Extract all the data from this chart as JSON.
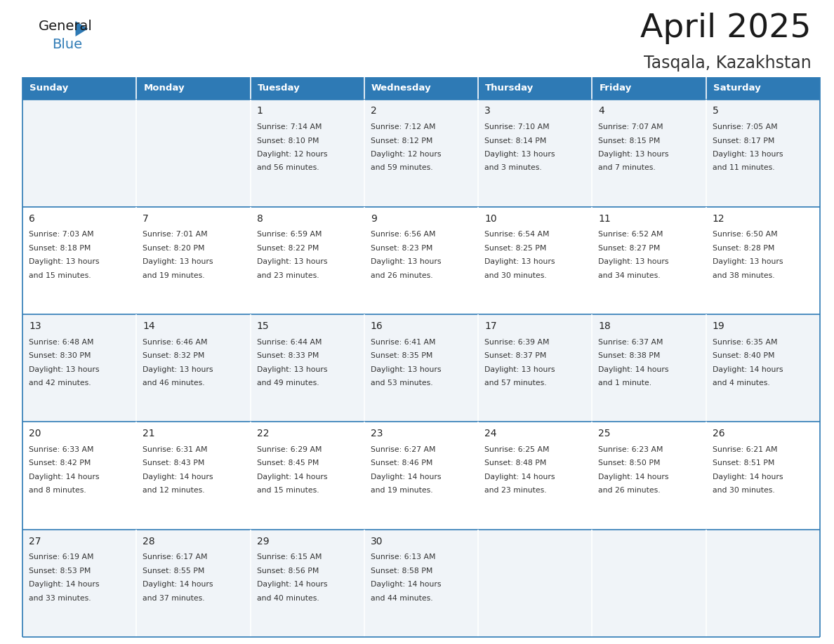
{
  "title": "April 2025",
  "subtitle": "Tasqala, Kazakhstan",
  "days_of_week": [
    "Sunday",
    "Monday",
    "Tuesday",
    "Wednesday",
    "Thursday",
    "Friday",
    "Saturday"
  ],
  "header_bg": "#2e7ab5",
  "header_text": "#ffffff",
  "row_bg_odd": "#f0f4f8",
  "row_bg_even": "#ffffff",
  "cell_border_color": "#2e7ab5",
  "day_num_color": "#222222",
  "text_color": "#333333",
  "title_color": "#1a1a1a",
  "subtitle_color": "#333333",
  "logo_color_general": "#1a1a1a",
  "logo_color_blue": "#2e7ab5",
  "logo_triangle_color": "#2e7ab5",
  "weeks": [
    [
      {
        "day": null,
        "sunrise": null,
        "sunset": null,
        "daylight": null
      },
      {
        "day": null,
        "sunrise": null,
        "sunset": null,
        "daylight": null
      },
      {
        "day": 1,
        "sunrise": "7:14 AM",
        "sunset": "8:10 PM",
        "daylight": "12 hours\nand 56 minutes."
      },
      {
        "day": 2,
        "sunrise": "7:12 AM",
        "sunset": "8:12 PM",
        "daylight": "12 hours\nand 59 minutes."
      },
      {
        "day": 3,
        "sunrise": "7:10 AM",
        "sunset": "8:14 PM",
        "daylight": "13 hours\nand 3 minutes."
      },
      {
        "day": 4,
        "sunrise": "7:07 AM",
        "sunset": "8:15 PM",
        "daylight": "13 hours\nand 7 minutes."
      },
      {
        "day": 5,
        "sunrise": "7:05 AM",
        "sunset": "8:17 PM",
        "daylight": "13 hours\nand 11 minutes."
      }
    ],
    [
      {
        "day": 6,
        "sunrise": "7:03 AM",
        "sunset": "8:18 PM",
        "daylight": "13 hours\nand 15 minutes."
      },
      {
        "day": 7,
        "sunrise": "7:01 AM",
        "sunset": "8:20 PM",
        "daylight": "13 hours\nand 19 minutes."
      },
      {
        "day": 8,
        "sunrise": "6:59 AM",
        "sunset": "8:22 PM",
        "daylight": "13 hours\nand 23 minutes."
      },
      {
        "day": 9,
        "sunrise": "6:56 AM",
        "sunset": "8:23 PM",
        "daylight": "13 hours\nand 26 minutes."
      },
      {
        "day": 10,
        "sunrise": "6:54 AM",
        "sunset": "8:25 PM",
        "daylight": "13 hours\nand 30 minutes."
      },
      {
        "day": 11,
        "sunrise": "6:52 AM",
        "sunset": "8:27 PM",
        "daylight": "13 hours\nand 34 minutes."
      },
      {
        "day": 12,
        "sunrise": "6:50 AM",
        "sunset": "8:28 PM",
        "daylight": "13 hours\nand 38 minutes."
      }
    ],
    [
      {
        "day": 13,
        "sunrise": "6:48 AM",
        "sunset": "8:30 PM",
        "daylight": "13 hours\nand 42 minutes."
      },
      {
        "day": 14,
        "sunrise": "6:46 AM",
        "sunset": "8:32 PM",
        "daylight": "13 hours\nand 46 minutes."
      },
      {
        "day": 15,
        "sunrise": "6:44 AM",
        "sunset": "8:33 PM",
        "daylight": "13 hours\nand 49 minutes."
      },
      {
        "day": 16,
        "sunrise": "6:41 AM",
        "sunset": "8:35 PM",
        "daylight": "13 hours\nand 53 minutes."
      },
      {
        "day": 17,
        "sunrise": "6:39 AM",
        "sunset": "8:37 PM",
        "daylight": "13 hours\nand 57 minutes."
      },
      {
        "day": 18,
        "sunrise": "6:37 AM",
        "sunset": "8:38 PM",
        "daylight": "14 hours\nand 1 minute."
      },
      {
        "day": 19,
        "sunrise": "6:35 AM",
        "sunset": "8:40 PM",
        "daylight": "14 hours\nand 4 minutes."
      }
    ],
    [
      {
        "day": 20,
        "sunrise": "6:33 AM",
        "sunset": "8:42 PM",
        "daylight": "14 hours\nand 8 minutes."
      },
      {
        "day": 21,
        "sunrise": "6:31 AM",
        "sunset": "8:43 PM",
        "daylight": "14 hours\nand 12 minutes."
      },
      {
        "day": 22,
        "sunrise": "6:29 AM",
        "sunset": "8:45 PM",
        "daylight": "14 hours\nand 15 minutes."
      },
      {
        "day": 23,
        "sunrise": "6:27 AM",
        "sunset": "8:46 PM",
        "daylight": "14 hours\nand 19 minutes."
      },
      {
        "day": 24,
        "sunrise": "6:25 AM",
        "sunset": "8:48 PM",
        "daylight": "14 hours\nand 23 minutes."
      },
      {
        "day": 25,
        "sunrise": "6:23 AM",
        "sunset": "8:50 PM",
        "daylight": "14 hours\nand 26 minutes."
      },
      {
        "day": 26,
        "sunrise": "6:21 AM",
        "sunset": "8:51 PM",
        "daylight": "14 hours\nand 30 minutes."
      }
    ],
    [
      {
        "day": 27,
        "sunrise": "6:19 AM",
        "sunset": "8:53 PM",
        "daylight": "14 hours\nand 33 minutes."
      },
      {
        "day": 28,
        "sunrise": "6:17 AM",
        "sunset": "8:55 PM",
        "daylight": "14 hours\nand 37 minutes."
      },
      {
        "day": 29,
        "sunrise": "6:15 AM",
        "sunset": "8:56 PM",
        "daylight": "14 hours\nand 40 minutes."
      },
      {
        "day": 30,
        "sunrise": "6:13 AM",
        "sunset": "8:58 PM",
        "daylight": "14 hours\nand 44 minutes."
      },
      {
        "day": null,
        "sunrise": null,
        "sunset": null,
        "daylight": null
      },
      {
        "day": null,
        "sunrise": null,
        "sunset": null,
        "daylight": null
      },
      {
        "day": null,
        "sunrise": null,
        "sunset": null,
        "daylight": null
      }
    ]
  ]
}
